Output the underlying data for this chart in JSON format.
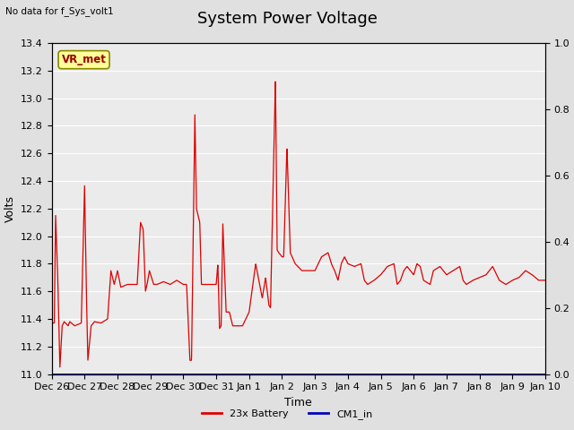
{
  "title": "System Power Voltage",
  "subtitle": "No data for f_Sys_volt1",
  "xlabel": "Time",
  "ylabel_left": "Volts",
  "ylim_left": [
    11.0,
    13.4
  ],
  "ylim_right": [
    0.0,
    1.0
  ],
  "yticks_left": [
    11.0,
    11.2,
    11.4,
    11.6,
    11.8,
    12.0,
    12.2,
    12.4,
    12.6,
    12.8,
    13.0,
    13.2,
    13.4
  ],
  "yticks_right": [
    0.0,
    0.2,
    0.4,
    0.6,
    0.8,
    1.0
  ],
  "xtick_labels": [
    "Dec 26",
    "Dec 27",
    "Dec 28",
    "Dec 29",
    "Dec 30",
    "Dec 31",
    "Jan 1",
    "Jan 2",
    "Jan 3",
    "Jan 4",
    "Jan 5",
    "Jan 6",
    "Jan 7",
    "Jan 8",
    "Jan 9",
    "Jan 10"
  ],
  "bg_color": "#e0e0e0",
  "plot_bg_color": "#ebebeb",
  "grid_color": "#ffffff",
  "line_color_battery": "#dd0000",
  "line_color_cm1": "#0000bb",
  "legend_battery": "23x Battery",
  "legend_cm1": "CM1_in",
  "annotation_text": "VR_met",
  "annotation_color": "#990000",
  "annotation_bg": "#ffff99",
  "title_fontsize": 13,
  "label_fontsize": 9,
  "tick_fontsize": 8
}
